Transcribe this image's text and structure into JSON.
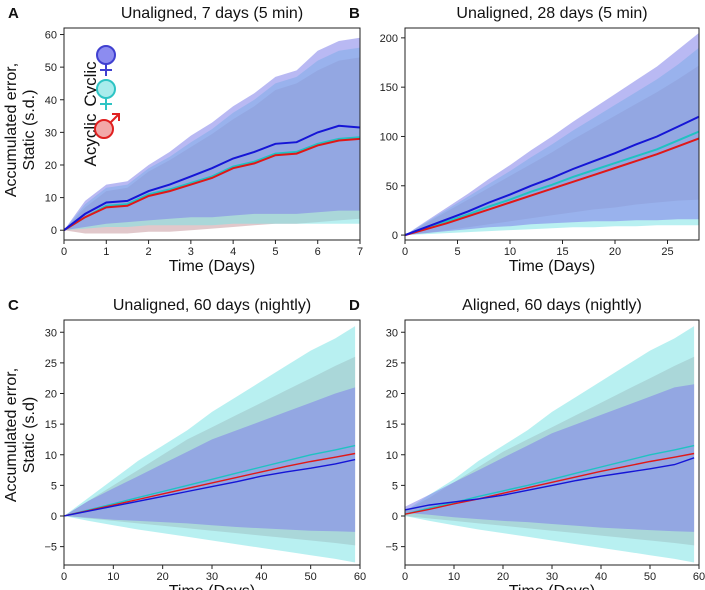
{
  "figure": {
    "ylabel_line1": "Accumulated error,",
    "ylabel_line2": "Static (s.d.)",
    "ylabel_bottom_line1": "Accumulated error,",
    "ylabel_bottom_line2": "Static (s.d)"
  },
  "legend": {
    "cyclic_label": "Cyclic",
    "acyclic_label": "Acyclic",
    "items": [
      {
        "name": "cyclic",
        "symbol": "female-symbol",
        "color": "#7b7bdc",
        "line_color": "#1f1fd0"
      },
      {
        "name": "acyclic",
        "symbol": "female-symbol",
        "color": "#7fe0e0",
        "line_color": "#2ec4c4"
      },
      {
        "name": "male",
        "symbol": "male-symbol",
        "color": "#f0a0a0",
        "line_color": "#e02020"
      }
    ]
  },
  "colors": {
    "cyclic_line": "#1515d6",
    "cyclic_band": "#7f80ea",
    "acyclic_line": "#20c2c2",
    "acyclic_band": "#7ee3e6",
    "male_line": "#e01818",
    "male_band": "#c99aa0"
  },
  "chart_data": [
    {
      "letter": "A",
      "type": "area",
      "title": "Unaligned, 7 days (5 min)",
      "xlabel": "Time (Days)",
      "xlim": [
        0,
        7
      ],
      "ylim": [
        -3,
        62
      ],
      "xticks": [
        0,
        1,
        2,
        3,
        4,
        5,
        6,
        7
      ],
      "yticks": [
        0,
        10,
        20,
        30,
        40,
        50,
        60
      ],
      "grid": false,
      "legend_position": "top-left",
      "x": [
        0,
        0.5,
        1,
        1.5,
        2,
        2.5,
        3,
        3.5,
        4,
        4.5,
        5,
        5.5,
        6,
        6.5,
        7
      ],
      "series": [
        {
          "name": "cyclic",
          "mean": [
            0,
            5,
            8.5,
            9,
            12,
            14,
            16.5,
            19,
            22,
            24,
            26.5,
            27,
            30,
            32,
            31.5
          ],
          "upper": [
            0,
            9,
            14,
            15,
            20,
            24,
            29,
            33,
            38,
            42,
            47,
            49,
            55,
            58,
            59
          ],
          "lower": [
            0,
            1,
            2,
            2.5,
            3,
            3.5,
            4,
            4,
            4.5,
            5,
            5,
            5,
            5.5,
            6,
            6
          ]
        },
        {
          "name": "acyclic",
          "mean": [
            0,
            4,
            7.5,
            8,
            11,
            12.5,
            14.5,
            16.5,
            19.5,
            21,
            23.5,
            24,
            26.5,
            28,
            28.5
          ],
          "upper": [
            0,
            8,
            13,
            14,
            19,
            22.5,
            27,
            31,
            36,
            40,
            45,
            47,
            52,
            55,
            56
          ],
          "lower": [
            0,
            0.5,
            1,
            1,
            1.5,
            1.5,
            1.5,
            1.5,
            2,
            2,
            2,
            2,
            2,
            2,
            2
          ]
        },
        {
          "name": "male",
          "mean": [
            0,
            4,
            7,
            7.5,
            10.5,
            12,
            14,
            16,
            19,
            20.5,
            23,
            23.5,
            26,
            27.5,
            28
          ],
          "upper": [
            0,
            7,
            12,
            13,
            18,
            21.5,
            25.5,
            29.5,
            34,
            38,
            43,
            45,
            49,
            52,
            53
          ],
          "lower": [
            0,
            -1,
            -1,
            -1,
            -0.5,
            -0.5,
            0,
            0.5,
            1,
            1.5,
            2,
            2,
            2.5,
            3,
            3.5
          ]
        }
      ]
    },
    {
      "letter": "B",
      "type": "area",
      "title": "Unaligned, 28 days (5 min)",
      "xlabel": "Time (Days)",
      "xlim": [
        0,
        28
      ],
      "ylim": [
        -5,
        210
      ],
      "xticks": [
        0,
        5,
        10,
        15,
        20,
        25
      ],
      "yticks": [
        0,
        50,
        100,
        150,
        200
      ],
      "grid": false,
      "x": [
        0,
        2,
        4,
        6,
        8,
        10,
        12,
        14,
        16,
        18,
        20,
        22,
        24,
        26,
        28
      ],
      "series": [
        {
          "name": "cyclic",
          "mean": [
            0,
            8,
            16,
            24,
            33,
            41,
            50,
            58,
            67,
            75,
            83,
            92,
            100,
            110,
            120
          ],
          "upper": [
            0,
            14,
            28,
            42,
            57,
            71,
            86,
            100,
            115,
            129,
            143,
            157,
            171,
            188,
            205
          ],
          "lower": [
            0,
            2,
            4,
            6,
            8,
            9,
            11,
            12,
            13,
            14,
            14,
            15,
            15,
            16,
            16
          ]
        },
        {
          "name": "acyclic",
          "mean": [
            0,
            7,
            14,
            21,
            29,
            36,
            44,
            51,
            59,
            66,
            73,
            80,
            87,
            96,
            105
          ],
          "upper": [
            0,
            13,
            26,
            39,
            52,
            65,
            79,
            92,
            106,
            119,
            132,
            145,
            158,
            173,
            190
          ],
          "lower": [
            0,
            1,
            2,
            3,
            4,
            5,
            6,
            7,
            8,
            8,
            9,
            9,
            10,
            10,
            10
          ]
        },
        {
          "name": "male",
          "mean": [
            0,
            6,
            12,
            19,
            26,
            33,
            40,
            47,
            54,
            61,
            68,
            75,
            82,
            90,
            98
          ],
          "upper": [
            0,
            12,
            24,
            36,
            48,
            60,
            72,
            84,
            97,
            109,
            121,
            133,
            145,
            158,
            172
          ],
          "lower": [
            0,
            2,
            5,
            8,
            11,
            14,
            17,
            20,
            23,
            26,
            28,
            31,
            33,
            35,
            36
          ]
        }
      ]
    },
    {
      "letter": "C",
      "type": "area",
      "title": "Unaligned, 60 days (nightly)",
      "xlabel": "Time (Days)",
      "xlim": [
        0,
        60
      ],
      "ylim": [
        -8,
        32
      ],
      "xticks": [
        0,
        10,
        20,
        30,
        40,
        50,
        60
      ],
      "yticks": [
        -5,
        0,
        5,
        10,
        15,
        20,
        25,
        30
      ],
      "grid": false,
      "x": [
        0,
        5,
        10,
        15,
        20,
        25,
        30,
        35,
        40,
        45,
        50,
        55,
        59
      ],
      "series": [
        {
          "name": "cyclic",
          "mean": [
            0,
            0.8,
            1.6,
            2.4,
            3.2,
            4.0,
            4.8,
            5.6,
            6.5,
            7.2,
            7.8,
            8.5,
            9.2
          ],
          "upper": [
            0,
            2.5,
            4.5,
            6.5,
            8.5,
            10.5,
            12.5,
            14,
            15.5,
            17,
            18.5,
            20,
            21
          ],
          "lower": [
            0,
            -0.3,
            -0.6,
            -0.8,
            -1.0,
            -1.2,
            -1.5,
            -1.8,
            -2.0,
            -2.2,
            -2.4,
            -2.5,
            -2.6
          ]
        },
        {
          "name": "acyclic",
          "mean": [
            0,
            1.0,
            2.0,
            3.0,
            4.0,
            5.0,
            6.0,
            7.0,
            8.0,
            9.0,
            10.0,
            10.8,
            11.5
          ],
          "upper": [
            0,
            3,
            6,
            9,
            11.5,
            14,
            17,
            19.5,
            22,
            24.5,
            27,
            29,
            31
          ],
          "lower": [
            0,
            -0.8,
            -1.5,
            -2.2,
            -2.8,
            -3.4,
            -4.0,
            -4.6,
            -5.2,
            -5.8,
            -6.4,
            -7.0,
            -7.6
          ]
        },
        {
          "name": "male",
          "mean": [
            0,
            0.9,
            1.8,
            2.7,
            3.6,
            4.5,
            5.4,
            6.3,
            7.2,
            8.1,
            8.9,
            9.6,
            10.2
          ],
          "upper": [
            0,
            2.5,
            5,
            7.5,
            10,
            12.5,
            14.5,
            16.5,
            18.5,
            20.5,
            22.5,
            24.5,
            26
          ],
          "lower": [
            0,
            -0.4,
            -0.8,
            -1.2,
            -1.6,
            -2.0,
            -2.4,
            -2.8,
            -3.2,
            -3.6,
            -4.0,
            -4.4,
            -4.8
          ]
        }
      ]
    },
    {
      "letter": "D",
      "type": "area",
      "title": "Aligned, 60 days (nightly)",
      "xlabel": "Time (Days)",
      "xlim": [
        0,
        60
      ],
      "ylim": [
        -8,
        32
      ],
      "xticks": [
        0,
        10,
        20,
        30,
        40,
        50,
        60
      ],
      "yticks": [
        -5,
        0,
        5,
        10,
        15,
        20,
        25,
        30
      ],
      "grid": false,
      "x": [
        0,
        5,
        10,
        15,
        20,
        25,
        30,
        35,
        40,
        45,
        50,
        55,
        59
      ],
      "series": [
        {
          "name": "cyclic",
          "mean": [
            1.0,
            1.8,
            2.3,
            2.8,
            3.4,
            4.2,
            5.0,
            5.8,
            6.5,
            7.1,
            7.7,
            8.4,
            9.5
          ],
          "upper": [
            1.5,
            3.5,
            5.5,
            7.5,
            9.5,
            11.5,
            13.5,
            15,
            16.5,
            18,
            19.5,
            21,
            21.5
          ],
          "lower": [
            0.5,
            0.2,
            -0.2,
            -0.5,
            -0.8,
            -1.0,
            -1.3,
            -1.6,
            -1.9,
            -2.1,
            -2.3,
            -2.5,
            -2.6
          ]
        },
        {
          "name": "acyclic",
          "mean": [
            0.3,
            1.3,
            2.2,
            3.2,
            4.1,
            5.0,
            6.0,
            7.0,
            8.0,
            9.0,
            10.0,
            10.8,
            11.5
          ],
          "upper": [
            0.8,
            3.5,
            6,
            9,
            11.5,
            14,
            17,
            19.5,
            22,
            24.5,
            27,
            29,
            31
          ],
          "lower": [
            0,
            -0.8,
            -1.5,
            -2.2,
            -2.8,
            -3.4,
            -4.0,
            -4.6,
            -5.2,
            -5.8,
            -6.4,
            -7.0,
            -7.6
          ]
        },
        {
          "name": "male",
          "mean": [
            0.3,
            1.1,
            2.0,
            2.8,
            3.7,
            4.6,
            5.5,
            6.4,
            7.3,
            8.1,
            8.9,
            9.6,
            10.2
          ],
          "upper": [
            0.8,
            3,
            5.5,
            8,
            10.5,
            12.5,
            14.5,
            16.5,
            18.5,
            20.5,
            22.5,
            24.5,
            26
          ],
          "lower": [
            0,
            -0.4,
            -0.8,
            -1.2,
            -1.6,
            -2.0,
            -2.4,
            -2.8,
            -3.2,
            -3.6,
            -4.0,
            -4.4,
            -4.8
          ]
        }
      ]
    }
  ]
}
